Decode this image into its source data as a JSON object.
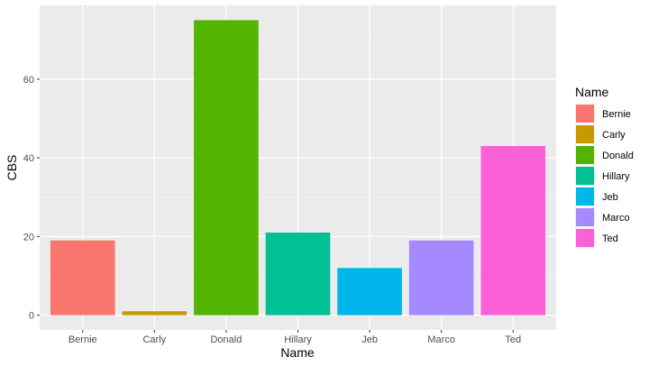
{
  "chart_data": {
    "type": "bar",
    "categories": [
      "Bernie",
      "Carly",
      "Donald",
      "Hillary",
      "Jeb",
      "Marco",
      "Ted"
    ],
    "values": [
      19,
      1,
      75,
      21,
      12,
      19,
      43
    ],
    "colors": [
      "#F8766D",
      "#C49A00",
      "#53B400",
      "#00C094",
      "#00B6EB",
      "#A58AFF",
      "#FB61D7"
    ],
    "xlabel": "Name",
    "ylabel": "CBS",
    "ylim": [
      -3.75,
      78.75
    ],
    "yticks": [
      0,
      20,
      40,
      60
    ],
    "grid": true,
    "legend": {
      "title": "Name",
      "placement": "right",
      "entries": [
        "Bernie",
        "Carly",
        "Donald",
        "Hillary",
        "Jeb",
        "Marco",
        "Ted"
      ]
    }
  }
}
